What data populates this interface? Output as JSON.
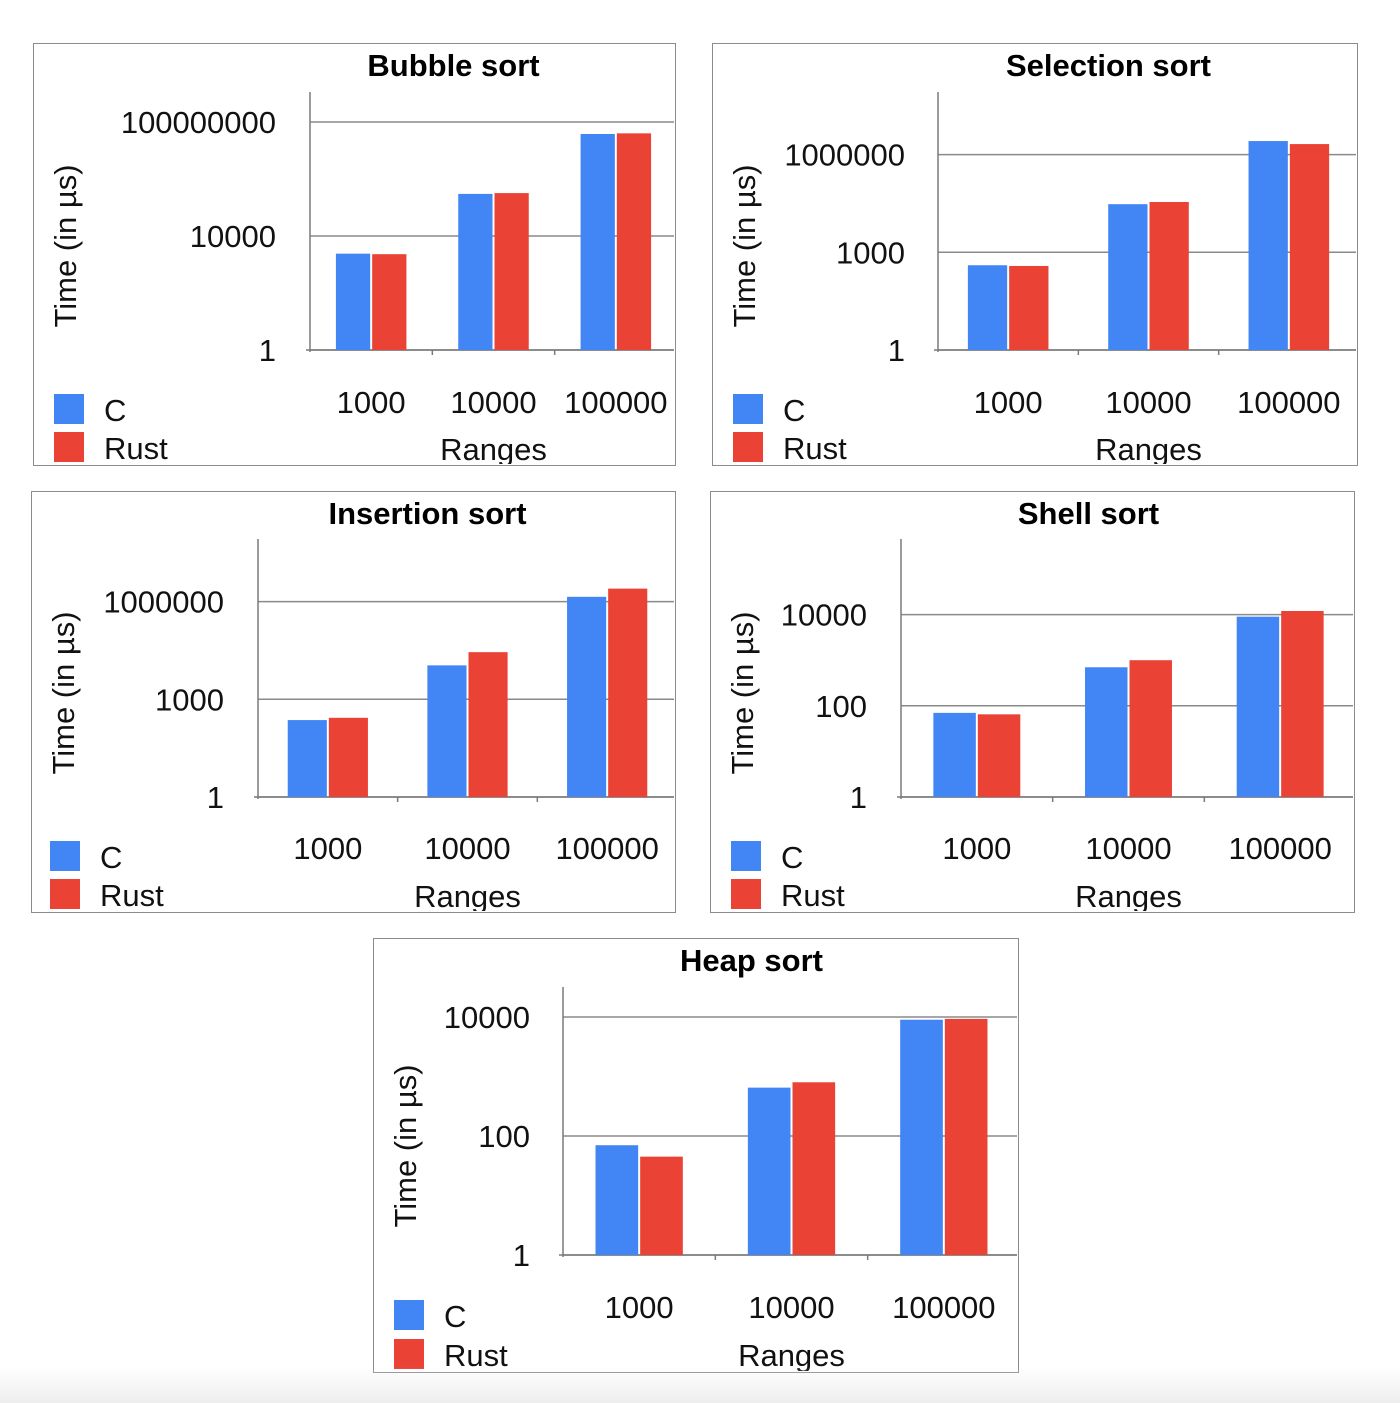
{
  "colors": {
    "c": "#4285f4",
    "rust": "#ea4335",
    "grid": "#8a8a8a",
    "axis": "#7a7a7a",
    "border": "#8c8c8c"
  },
  "legend": [
    "C",
    "Rust"
  ],
  "chart_data": [
    {
      "type": "bar",
      "title": "Bubble sort",
      "xlabel": "Ranges",
      "ylabel": "Time (in µs)",
      "yscale": "log",
      "ylim": [
        1,
        100000000
      ],
      "yticks": [
        1,
        10000,
        100000000
      ],
      "yticklabels": [
        "1",
        "10000",
        "100000000"
      ],
      "categories": [
        "1000",
        "10000",
        "100000"
      ],
      "series": [
        {
          "name": "C",
          "values": [
            2400,
            300000,
            38000000
          ]
        },
        {
          "name": "Rust",
          "values": [
            2300,
            320000,
            40000000
          ]
        }
      ],
      "legend_position": "bottom-left",
      "grid": true
    },
    {
      "type": "bar",
      "title": "Selection sort",
      "xlabel": "Ranges",
      "ylabel": "Time (in µs)",
      "yscale": "log",
      "ylim": [
        1,
        10000000
      ],
      "yticks": [
        1,
        1000,
        1000000
      ],
      "yticklabels": [
        "1",
        "1000",
        "1000000"
      ],
      "categories": [
        "1000",
        "10000",
        "100000"
      ],
      "series": [
        {
          "name": "C",
          "values": [
            400,
            30000,
            2600000
          ]
        },
        {
          "name": "Rust",
          "values": [
            380,
            35000,
            2100000
          ]
        }
      ],
      "legend_position": "bottom-left",
      "grid": true
    },
    {
      "type": "bar",
      "title": "Insertion sort",
      "xlabel": "Ranges",
      "ylabel": "Time (in µs)",
      "yscale": "log",
      "ylim": [
        1,
        10000000
      ],
      "yticks": [
        1,
        1000,
        1000000
      ],
      "yticklabels": [
        "1",
        "1000",
        "1000000"
      ],
      "categories": [
        "1000",
        "10000",
        "100000"
      ],
      "series": [
        {
          "name": "C",
          "values": [
            230,
            11000,
            1400000
          ]
        },
        {
          "name": "Rust",
          "values": [
            270,
            28000,
            2500000
          ]
        }
      ],
      "legend_position": "bottom-left",
      "grid": true
    },
    {
      "type": "bar",
      "title": "Shell sort",
      "xlabel": "Ranges",
      "ylabel": "Time (in µs)",
      "yscale": "log",
      "ylim": [
        1,
        100000
      ],
      "yticks": [
        1,
        100,
        10000
      ],
      "yticklabels": [
        "1",
        "100",
        "10000"
      ],
      "categories": [
        "1000",
        "10000",
        "100000"
      ],
      "series": [
        {
          "name": "C",
          "values": [
            70,
            700,
            9000
          ]
        },
        {
          "name": "Rust",
          "values": [
            65,
            1000,
            12000
          ]
        }
      ],
      "legend_position": "bottom-left",
      "grid": true
    },
    {
      "type": "bar",
      "title": "Heap sort",
      "xlabel": "Ranges",
      "ylabel": "Time (in µs)",
      "yscale": "log",
      "ylim": [
        1,
        10000
      ],
      "yticks": [
        1,
        100,
        10000
      ],
      "yticklabels": [
        "1",
        "100",
        "10000"
      ],
      "categories": [
        "1000",
        "10000",
        "100000"
      ],
      "series": [
        {
          "name": "C",
          "values": [
            70,
            650,
            9000
          ]
        },
        {
          "name": "Rust",
          "values": [
            45,
            800,
            9300
          ]
        }
      ],
      "legend_position": "bottom-left",
      "grid": true
    }
  ]
}
